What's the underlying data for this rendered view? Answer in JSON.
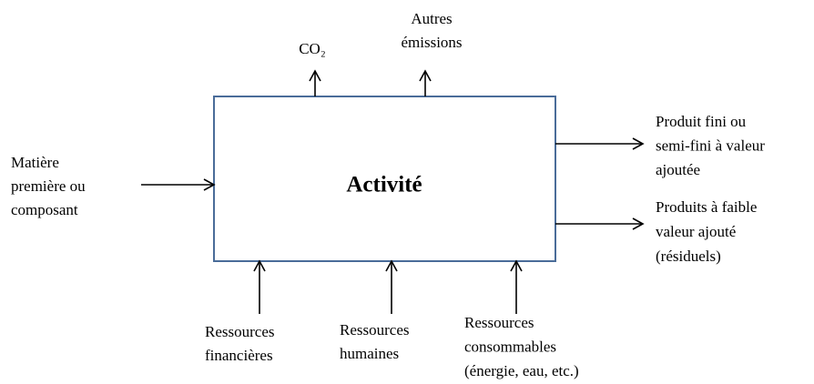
{
  "center": {
    "label": "Activité"
  },
  "outputs_top": [
    {
      "lines": [
        "CO₂"
      ]
    },
    {
      "lines": [
        "Autres",
        "émissions"
      ]
    }
  ],
  "input_left": {
    "lines": [
      "Matière",
      "première ou",
      "composant"
    ]
  },
  "outputs_right": [
    {
      "lines": [
        "Produit fini ou",
        "semi-fini à valeur",
        "ajoutée"
      ]
    },
    {
      "lines": [
        "Produits à faible",
        "valeur ajouté",
        "(résiduels)"
      ]
    }
  ],
  "inputs_bottom": [
    {
      "lines": [
        "Ressources",
        "financières"
      ]
    },
    {
      "lines": [
        "Ressources",
        "humaines"
      ]
    },
    {
      "lines": [
        "Ressources",
        "consommables",
        "(énergie, eau, etc.)"
      ]
    }
  ]
}
